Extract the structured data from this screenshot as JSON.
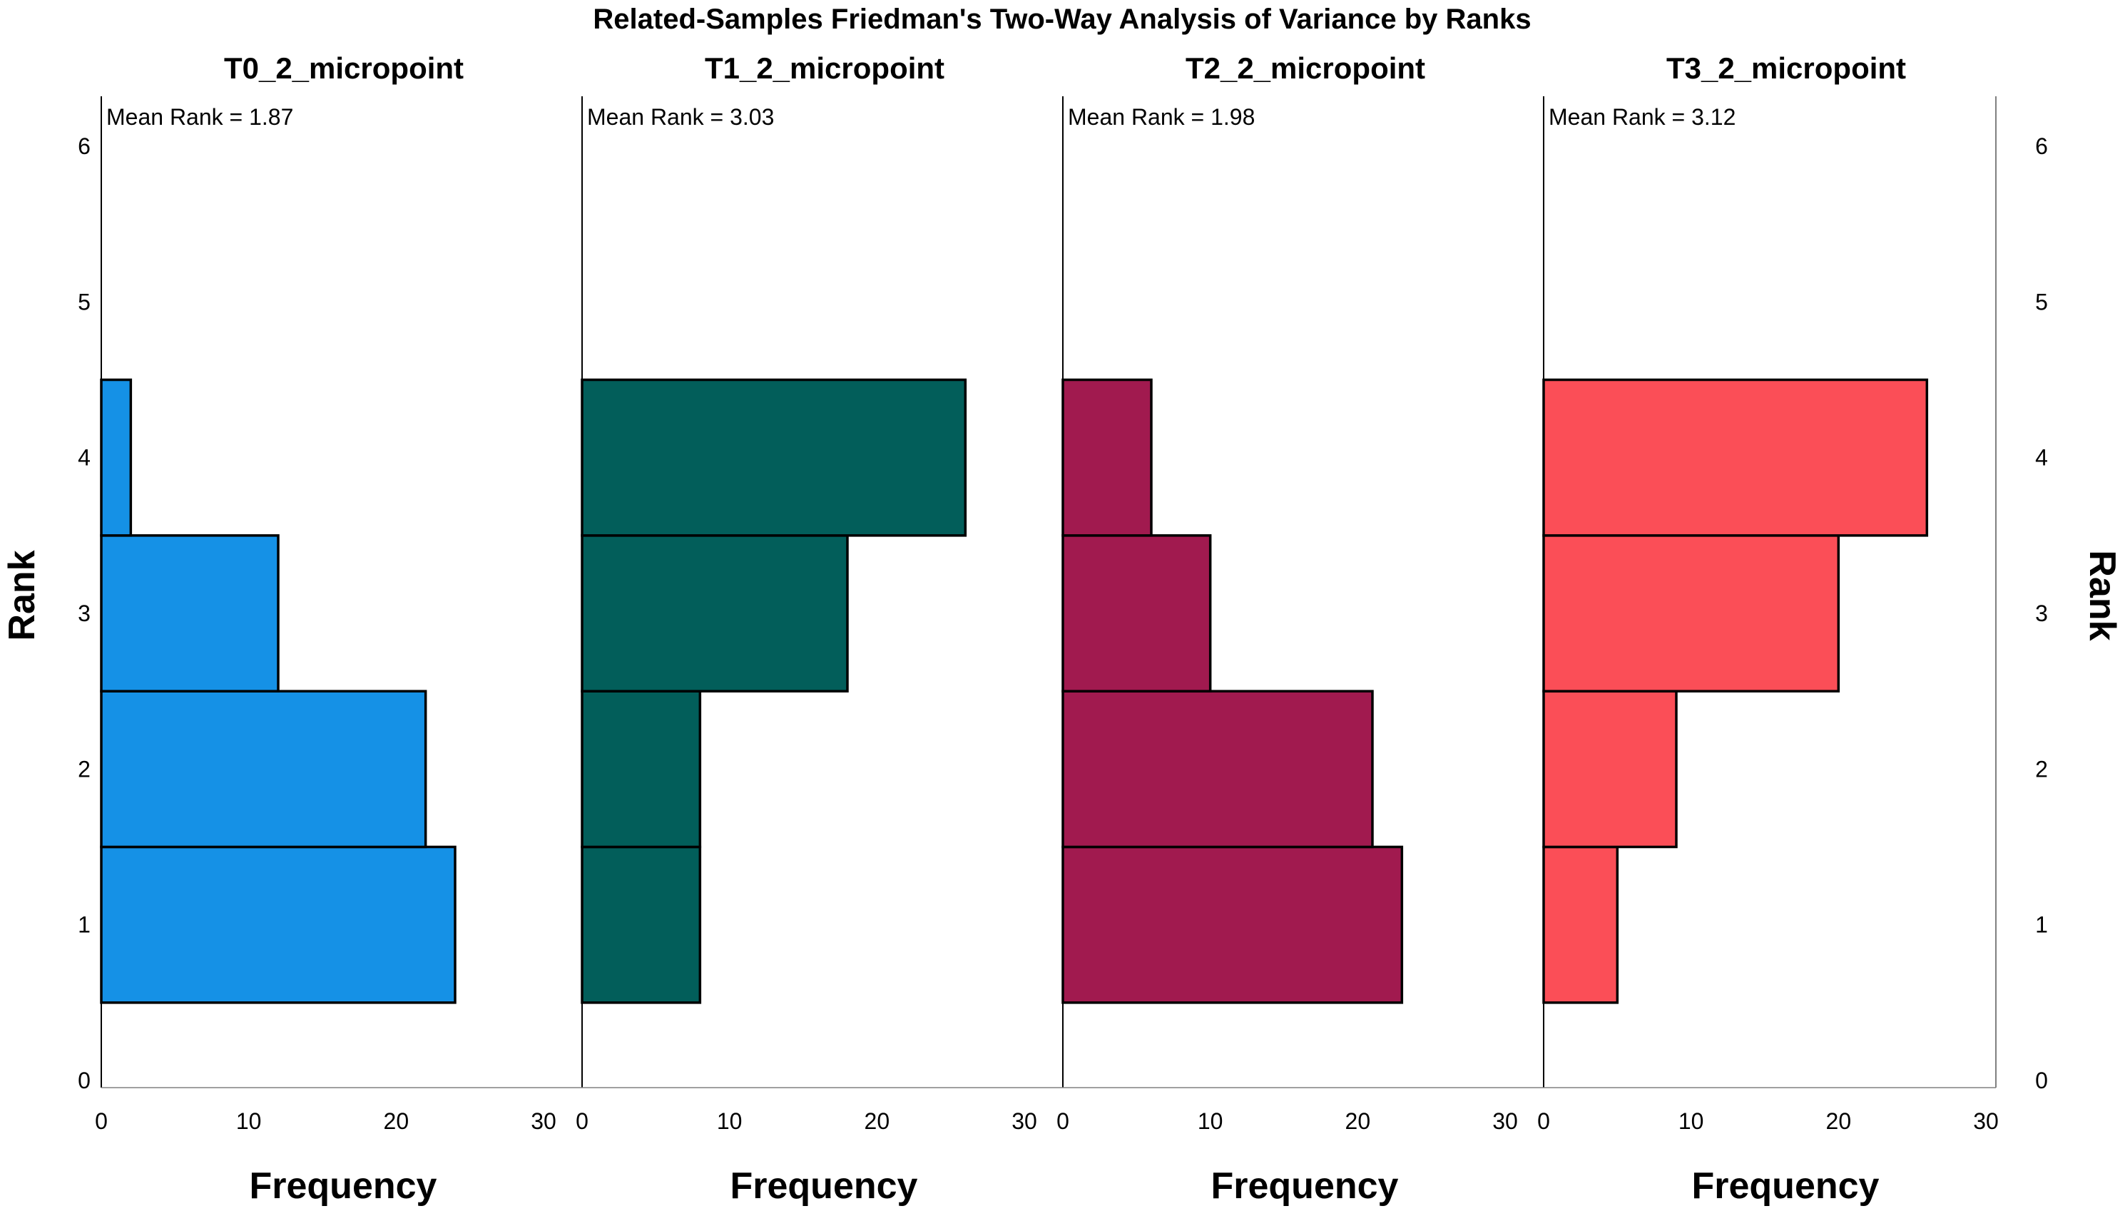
{
  "chart_data": {
    "type": "bar",
    "orientation": "horizontal",
    "title": "Related-Samples Friedman's Two-Way Analysis of Variance by Ranks",
    "ylabel": "Rank",
    "xlabel": "Frequency",
    "ylim": [
      0,
      6
    ],
    "yticks": [
      "0",
      "1",
      "2",
      "3",
      "4",
      "5",
      "6"
    ],
    "xlim": [
      0,
      30
    ],
    "xticks": [
      "0",
      "10",
      "20",
      "30"
    ],
    "categories": [
      1,
      2,
      3,
      4
    ],
    "series": [
      {
        "name": "T0_2_micropoint",
        "mean_rank": "Mean Rank = 1.87",
        "color": "#1591e6",
        "values": [
          24,
          22,
          12,
          2
        ]
      },
      {
        "name": "T1_2_micropoint",
        "mean_rank": "Mean Rank = 3.03",
        "color": "#025e5a",
        "values": [
          8,
          8,
          18,
          26
        ]
      },
      {
        "name": "T2_2_micropoint",
        "mean_rank": "Mean Rank = 1.98",
        "color": "#a11a4f",
        "values": [
          23,
          21,
          10,
          6
        ]
      },
      {
        "name": "T3_2_micropoint",
        "mean_rank": "Mean Rank = 3.12",
        "color": "#fb4e57",
        "values": [
          5,
          9,
          20,
          26
        ]
      }
    ]
  }
}
